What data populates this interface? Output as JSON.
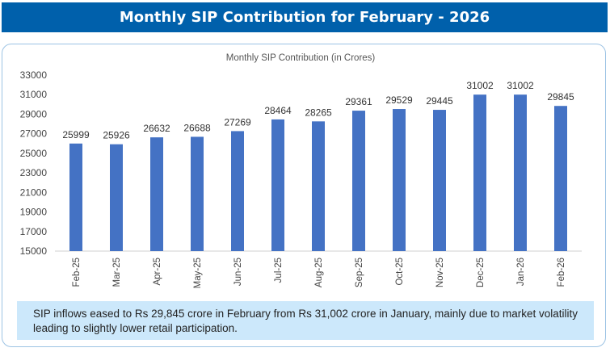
{
  "header": {
    "title": "Monthly SIP Contribution for February - 2026"
  },
  "chart_data": {
    "type": "bar",
    "title": "Monthly SIP Contribution (in Crores)",
    "categories": [
      "Feb-25",
      "Mar-25",
      "Apr-25",
      "May-25",
      "Jun-25",
      "Jul-25",
      "Aug-25",
      "Sep-25",
      "Oct-25",
      "Nov-25",
      "Dec-25",
      "Jan-26",
      "Feb-26"
    ],
    "values": [
      25999,
      25926,
      26632,
      26688,
      27269,
      28464,
      28265,
      29361,
      29529,
      29445,
      31002,
      31002,
      29845
    ],
    "ylim": [
      15000,
      33000
    ],
    "yticks": [
      15000,
      17000,
      19000,
      21000,
      23000,
      25000,
      27000,
      29000,
      31000,
      33000
    ],
    "grid": false,
    "data_labels": true,
    "bar_color": "#4472c4"
  },
  "note": {
    "text": "SIP inflows eased to Rs 29,845 crore in February from Rs 31,002 crore in January, mainly due to market volatility leading to slightly lower retail participation."
  }
}
